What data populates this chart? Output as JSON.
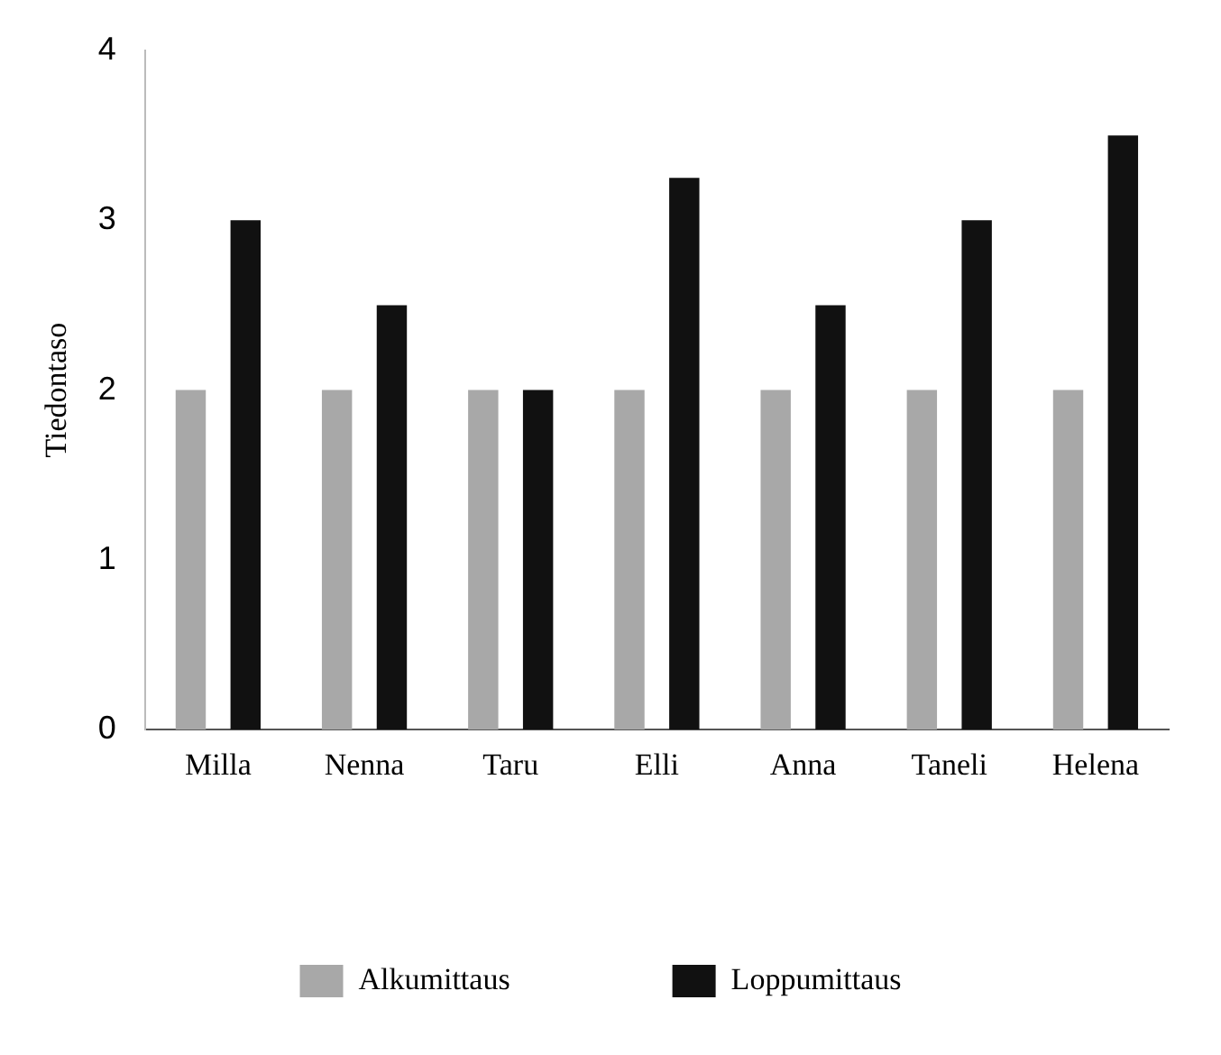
{
  "chart_data": {
    "type": "bar",
    "ylabel": "Tiedontaso",
    "categories": [
      "Milla",
      "Nenna",
      "Taru",
      "Elli",
      "Anna",
      "Taneli",
      "Helena"
    ],
    "series": [
      {
        "name": "Alkumittaus",
        "color": "#a8a8a8",
        "values": [
          2,
          2,
          2,
          2,
          2,
          2,
          2
        ]
      },
      {
        "name": "Loppumittaus",
        "color": "#111111",
        "values": [
          3,
          2.5,
          2,
          3.25,
          2.5,
          3,
          3.5
        ]
      }
    ],
    "ylim": [
      0,
      4
    ],
    "yticks": [
      0,
      1,
      2,
      3,
      4
    ],
    "grid": false,
    "legend": "bottom"
  }
}
